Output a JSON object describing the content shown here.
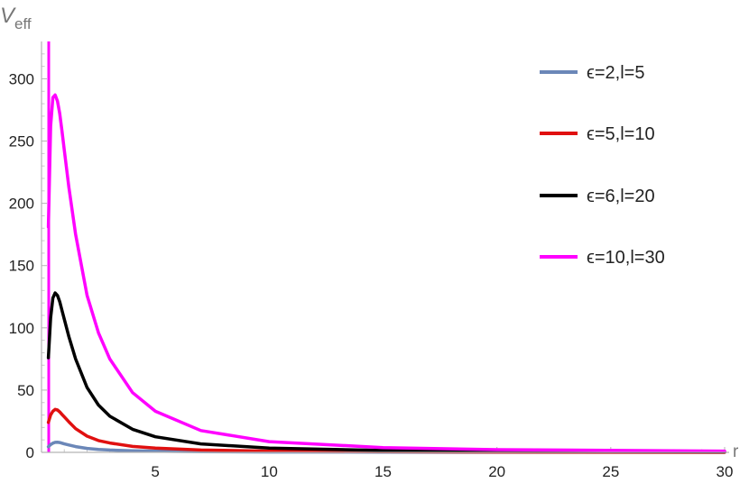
{
  "chart_data": {
    "type": "line",
    "title": "",
    "xlabel": "r",
    "ylabel_main": "V",
    "ylabel_sub": "eff",
    "xlim": [
      0,
      30
    ],
    "ylim": [
      0,
      330
    ],
    "xticks": [
      5,
      10,
      15,
      20,
      25,
      30
    ],
    "yticks": [
      0,
      50,
      100,
      150,
      200,
      250,
      300
    ],
    "grid": false,
    "legend_position": "top-right",
    "series": [
      {
        "name": "ϵ=2,l=5",
        "color": "#6B87B8",
        "x": [
          0.3,
          0.4,
          0.5,
          0.6,
          0.7,
          0.8,
          0.9,
          1.0,
          1.2,
          1.5,
          2.0,
          2.5,
          3.0,
          4.0,
          5.0,
          7.0,
          10.0,
          15.0,
          20.0,
          30.0
        ],
        "values": [
          4.5,
          6.2,
          7.4,
          8.0,
          8.1,
          7.9,
          7.4,
          6.8,
          5.9,
          4.6,
          3.2,
          2.4,
          1.9,
          1.3,
          1.0,
          0.6,
          0.3,
          0.2,
          0.1,
          0.1
        ]
      },
      {
        "name": "ϵ=5,l=10",
        "color": "#E01010",
        "x": [
          0.3,
          0.4,
          0.5,
          0.6,
          0.7,
          0.8,
          0.9,
          1.0,
          1.2,
          1.5,
          2.0,
          2.5,
          3.0,
          4.0,
          5.0,
          7.0,
          10.0,
          15.0,
          20.0,
          30.0
        ],
        "values": [
          24,
          30,
          33,
          34.5,
          34,
          32.5,
          30.5,
          28.5,
          24.5,
          19,
          13,
          9.5,
          7.5,
          4.8,
          3.4,
          1.9,
          1.0,
          0.5,
          0.3,
          0.1
        ]
      },
      {
        "name": "ϵ=6,l=20",
        "color": "#000000",
        "x": [
          0.3,
          0.4,
          0.5,
          0.6,
          0.7,
          0.8,
          0.9,
          1.0,
          1.2,
          1.5,
          2.0,
          2.5,
          3.0,
          4.0,
          5.0,
          7.0,
          10.0,
          15.0,
          20.0,
          30.0
        ],
        "values": [
          76,
          108,
          124,
          128,
          126,
          121,
          114,
          107,
          93,
          75,
          52,
          38,
          29,
          18.5,
          12.5,
          6.8,
          3.4,
          1.5,
          0.9,
          0.4
        ]
      },
      {
        "name": "ϵ=10,l=30",
        "color": "#FF00FF",
        "x": [
          0.3,
          0.4,
          0.5,
          0.6,
          0.7,
          0.8,
          0.9,
          1.0,
          1.2,
          1.5,
          2.0,
          2.5,
          3.0,
          4.0,
          5.0,
          7.0,
          10.0,
          15.0,
          20.0,
          30.0
        ],
        "values": [
          181,
          262,
          285,
          287,
          282,
          272,
          258,
          243,
          213,
          175,
          126,
          96,
          75,
          48,
          33,
          17.5,
          8.6,
          3.8,
          2.2,
          1.0
        ]
      }
    ]
  }
}
